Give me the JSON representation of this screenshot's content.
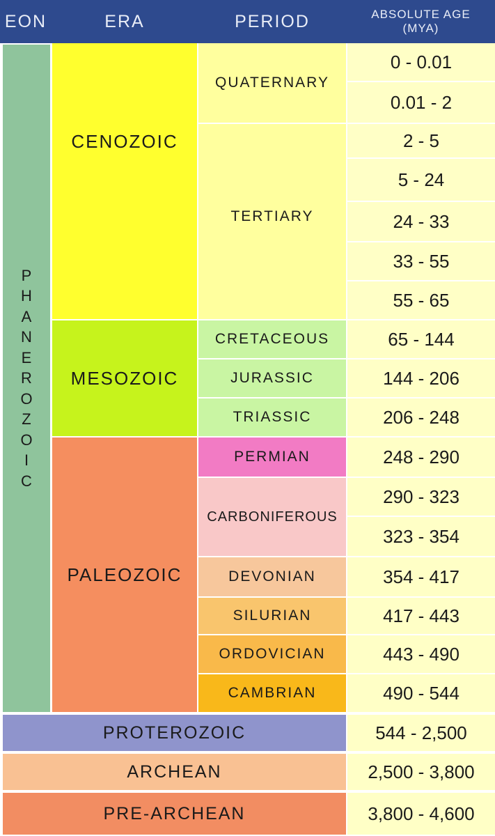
{
  "headers": {
    "eon": "EON",
    "era": "ERA",
    "period": "PERIOD",
    "age_line1": "ABSOLUTE AGE",
    "age_line2": "(MYA)"
  },
  "eon": {
    "name": "PHANEROZOIC",
    "letters": [
      "P",
      "H",
      "A",
      "N",
      "E",
      "R",
      "O",
      "Z",
      "O",
      "I",
      "C"
    ]
  },
  "eras": {
    "cenozoic": "CENOZOIC",
    "mesozoic": "MESOZOIC",
    "paleozoic": "PALEOZOIC"
  },
  "periods": {
    "quaternary": "QUATERNARY",
    "tertiary": "TERTIARY",
    "cretaceous": "CRETACEOUS",
    "jurassic": "JURASSIC",
    "triassic": "TRIASSIC",
    "permian": "PERMIAN",
    "carboniferous": "CARBONIFEROUS",
    "devonian": "DEVONIAN",
    "silurian": "SILURIAN",
    "ordovician": "ORDOVICIAN",
    "cambrian": "CAMBRIAN"
  },
  "ages": [
    "0 - 0.01",
    "0.01 - 2",
    "2 - 5",
    "5 - 24",
    "24 - 33",
    "33 - 55",
    "55 - 65",
    "65 - 144",
    "144 - 206",
    "206 - 248",
    "248 - 290",
    "290 - 323",
    "323 - 354",
    "354 - 417",
    "417 - 443",
    "443 - 490",
    "490 - 544"
  ],
  "bottom_rows": [
    {
      "name": "PROTEROZOIC",
      "age": "544 - 2,500",
      "color": "#8f94cc"
    },
    {
      "name": "ARCHEAN",
      "age": "2,500 - 3,800",
      "color": "#f9c193"
    },
    {
      "name": "PRE-ARCHEAN",
      "age": "3,800 - 4,600",
      "color": "#f28d62"
    }
  ],
  "colors": {
    "header": "#2e4a8e",
    "eon": "#8fc49c",
    "cenozoic": "#ffff2e",
    "quaternary_tertiary": "#ffff9e",
    "mesozoic": "#c6f31c",
    "mesozoic_periods": "#c9f5a3",
    "paleozoic": "#f58e5f",
    "permian": "#f27bc4",
    "carboniferous": "#f9c8c8",
    "devonian": "#f7c79c",
    "silurian": "#f9c56d",
    "ordovician": "#f9b94a",
    "cambrian": "#f9b81a",
    "age": "#ffffc6"
  }
}
